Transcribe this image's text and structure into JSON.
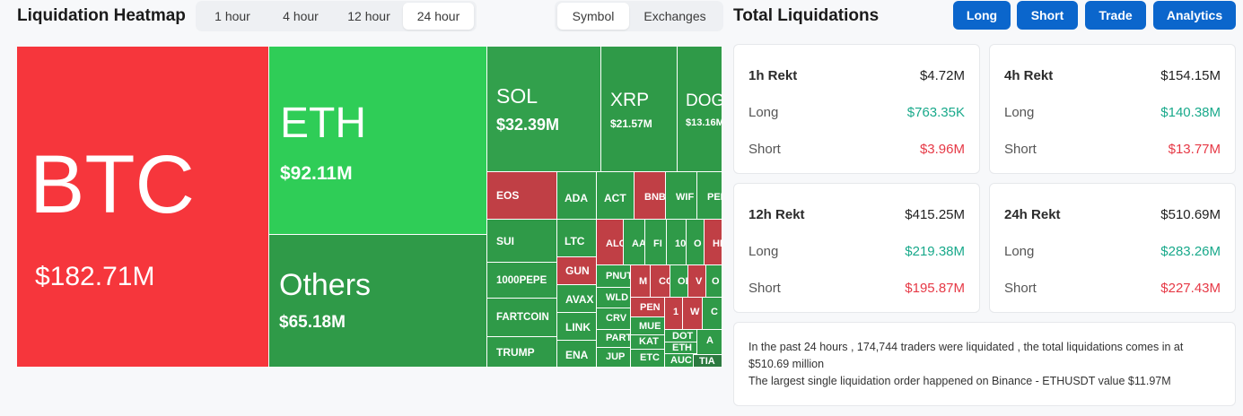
{
  "heatmap": {
    "title": "Liquidation Heatmap",
    "timeframes": [
      "1 hour",
      "4 hour",
      "12 hour",
      "24 hour"
    ],
    "active_timeframe": "24 hour",
    "views": [
      "Symbol",
      "Exchanges"
    ],
    "active_view": "Symbol",
    "tiles": {
      "btc": {
        "symbol": "BTC",
        "value": "$182.71M"
      },
      "eth": {
        "symbol": "ETH",
        "value": "$92.11M"
      },
      "others": {
        "symbol": "Others",
        "value": "$65.18M"
      },
      "sol": {
        "symbol": "SOL",
        "value": "$32.39M"
      },
      "xrp": {
        "symbol": "XRP",
        "value": "$21.57M"
      },
      "doge": {
        "symbol": "DOG",
        "value": "$13.16M"
      },
      "eos": "EOS",
      "ada": "ADA",
      "act": "ACT",
      "bnb": "BNB",
      "wif": "WIF",
      "pep": "PEP",
      "sui": "SUI",
      "ltc": "LTC",
      "alc": "ALC",
      "aa": "AA",
      "fi": "FI",
      "t10": "10",
      "o1": "O",
      "hi": "HI",
      "pepe1000": "1000PEPE",
      "gun": "GUN",
      "pnut": "PNUT",
      "m": "M",
      "cc": "CC",
      "ol": "OL",
      "v": "V",
      "o2": "O",
      "avax": "AVAX",
      "wld": "WLD",
      "pen": "PEN",
      "t1": "1",
      "w": "W",
      "c": "C",
      "fartcoin": "FARTCOIN",
      "link": "LINK",
      "crv": "CRV",
      "mue": "MUE",
      "part": "PART",
      "dot": "DOT",
      "a": "A",
      "trump": "TRUMP",
      "ena": "ENA",
      "kat": "KAT",
      "eth2": "ETH",
      "jup": "JUP",
      "etc": "ETC",
      "auc": "AUC",
      "tia": "TIA"
    }
  },
  "liquidations": {
    "title": "Total Liquidations",
    "buttons": [
      "Long",
      "Short",
      "Trade",
      "Analytics"
    ],
    "cards": [
      {
        "label": "1h Rekt",
        "total": "$4.72M",
        "long_label": "Long",
        "long": "$763.35K",
        "short_label": "Short",
        "short": "$3.96M"
      },
      {
        "label": "4h Rekt",
        "total": "$154.15M",
        "long_label": "Long",
        "long": "$140.38M",
        "short_label": "Short",
        "short": "$13.77M"
      },
      {
        "label": "12h Rekt",
        "total": "$415.25M",
        "long_label": "Long",
        "long": "$219.38M",
        "short_label": "Short",
        "short": "$195.87M"
      },
      {
        "label": "24h Rekt",
        "total": "$510.69M",
        "long_label": "Long",
        "long": "$283.26M",
        "short_label": "Short",
        "short": "$227.43M"
      }
    ],
    "summary_line1": "In the past 24 hours , 174,744 traders were liquidated , the total liquidations comes in at $510.69 million",
    "summary_line2": "The largest single liquidation order happened on Binance - ETHUSDT value $11.97M"
  },
  "colors": {
    "long_green": "#19a98b",
    "short_red": "#e63946",
    "button_blue": "#0b66cc",
    "tile_red": "#f6363c",
    "tile_green": "#2f9a48"
  }
}
